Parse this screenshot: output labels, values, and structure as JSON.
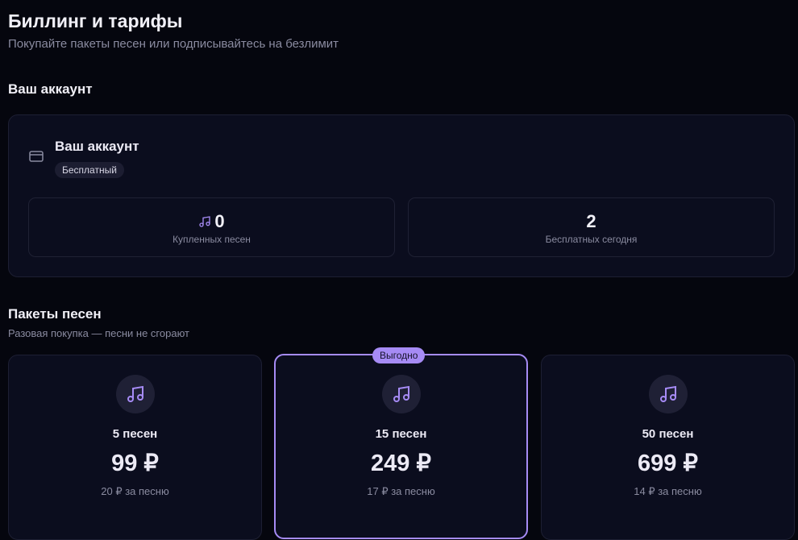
{
  "header": {
    "title": "Биллинг и тарифы",
    "subtitle": "Покупайте пакеты песен или подписывайтесь на безлимит"
  },
  "account": {
    "section_title": "Ваш аккаунт",
    "card_title": "Ваш аккаунт",
    "plan_badge": "Бесплатный",
    "stats": [
      {
        "value": "0",
        "label": "Купленных песен",
        "icon": "music-note-icon"
      },
      {
        "value": "2",
        "label": "Бесплатных сегодня"
      }
    ]
  },
  "packages": {
    "section_title": "Пакеты песен",
    "subtitle": "Разовая покупка — песни не сгорают",
    "highlight_badge": "Выгодно",
    "items": [
      {
        "name": "5 песен",
        "price": "99 ₽",
        "per_song": "20 ₽ за песню"
      },
      {
        "name": "15 песен",
        "price": "249 ₽",
        "per_song": "17 ₽ за песню",
        "highlighted": true
      },
      {
        "name": "50 песен",
        "price": "699 ₽",
        "per_song": "14 ₽ за песню"
      }
    ]
  },
  "colors": {
    "accent": "#a68bf5",
    "background": "#05060e",
    "card": "#0b0d1e"
  }
}
